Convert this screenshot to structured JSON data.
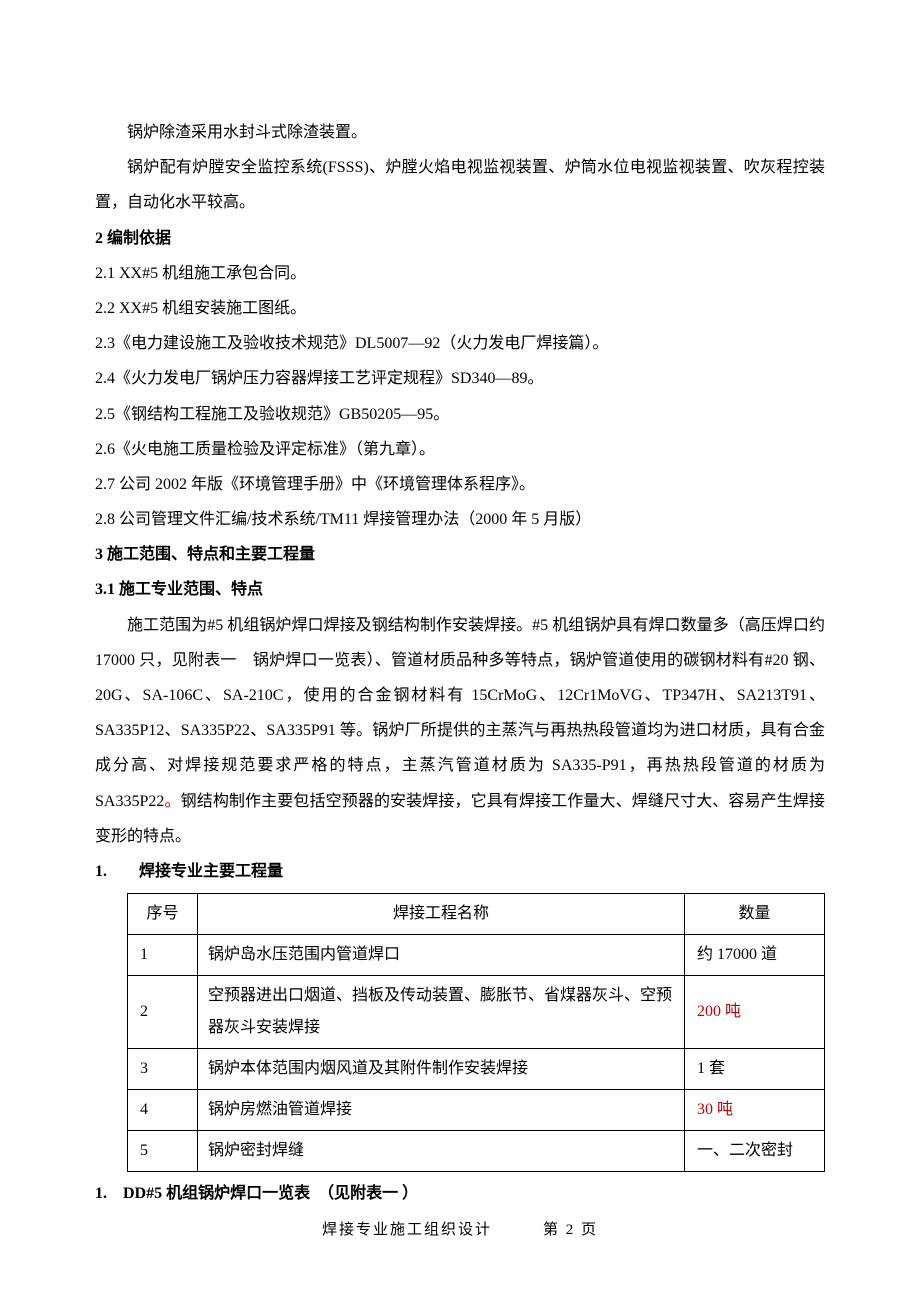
{
  "paragraphs": {
    "p1": "锅炉除渣采用水封斗式除渣装置。",
    "p2": "锅炉配有炉膛安全监控系统(FSSS)、炉膛火焰电视监视装置、炉筒水位电视监视装置、吹灰程控装置，自动化水平较高。"
  },
  "sections": {
    "s2": "2 编制依据",
    "s2_1": "2.1 XX#5 机组施工承包合同。",
    "s2_2": "2.2 XX#5 机组安装施工图纸。",
    "s2_3": "2.3《电力建设施工及验收技术规范》DL5007—92（火力发电厂焊接篇）。",
    "s2_4": "2.4《火力发电厂锅炉压力容器焊接工艺评定规程》SD340—89。",
    "s2_5": "2.5《钢结构工程施工及验收规范》GB50205—95。",
    "s2_6": "2.6《火电施工质量检验及评定标准》（第九章）。",
    "s2_7": "2.7 公司 2002 年版《环境管理手册》中《环境管理体系程序》。",
    "s2_8": "2.8 公司管理文件汇编/技术系统/TM11 焊接管理办法（2000 年 5 月版）",
    "s3": "3 施工范围、特点和主要工程量",
    "s3_1": "3.1 施工专业范围、特点",
    "s3_1_body": "施工范围为#5 机组锅炉焊口焊接及钢结构制作安装焊接。#5 机组锅炉具有焊口数量多（高压焊口约 17000 只，见附表一　锅炉焊口一览表）、管道材质品种多等特点，锅炉管道使用的碳钢材料有#20 钢、20G、SA-106C、SA-210C，使用的合金钢材料有 15CrMoG、12Cr1MoVG、TP347H、SA213T91、SA335P12、SA335P22、SA335P91 等。锅炉厂所提供的主蒸汽与再热热段管道均为进口材质，具有合金成分高、对焊接规范要求严格的特点，主蒸汽管道材质为 SA335-P91，再热热段管道的材质为 SA335P22",
    "s3_1_body_red": "。",
    "s3_1_body_tail": "钢结构制作主要包括空预器的安装焊接，它具有焊接工作量大、焊缝尺寸大、容易产生焊接变形的特点。",
    "list1": "1.　　焊接专业主要工程量",
    "list2": "1.　DD#5 机组锅炉焊口一览表　（见附表一 ）"
  },
  "table": {
    "headers": {
      "seq": "序号",
      "name": "焊接工程名称",
      "qty": "数量"
    },
    "rows": [
      {
        "seq": "1",
        "name": "锅炉岛水压范围内管道焊口",
        "qty": "约 17000 道",
        "qty_red": false
      },
      {
        "seq": "2",
        "name": "空预器进出口烟道、挡板及传动装置、膨胀节、省煤器灰斗、空预器灰斗安装焊接",
        "qty": "200 吨",
        "qty_red": true
      },
      {
        "seq": "3",
        "name": "锅炉本体范围内烟风道及其附件制作安装焊接",
        "qty": "1 套",
        "qty_red": false
      },
      {
        "seq": "4",
        "name": "锅炉房燃油管道焊接",
        "qty": "30 吨",
        "qty_red": true
      },
      {
        "seq": "5",
        "name": "锅炉密封焊缝",
        "qty": "一、二次密封",
        "qty_red": false
      }
    ]
  },
  "footer": "焊接专业施工组织设计　　　第 2 页"
}
